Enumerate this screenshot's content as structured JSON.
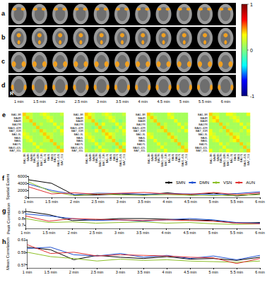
{
  "brain_maps": {
    "rows": [
      "a",
      "b",
      "c",
      "d"
    ],
    "times": [
      "1 min",
      "1.5 min",
      "2 min",
      "2.5 min",
      "3 min",
      "3.5 min",
      "4 min",
      "4.5 min",
      "5 min",
      "5.5 min",
      "6 min"
    ],
    "side_label": "R"
  },
  "colorbar": {
    "range": [
      -1,
      1
    ],
    "ticks": [
      1,
      0,
      -1
    ]
  },
  "chart_data": [
    {
      "type": "heatmap",
      "panel": "e",
      "categories": [
        "BA1-3R",
        "BA4R",
        "BA6R",
        "BA17R",
        "BA41-42R",
        "BA7_31R",
        "BA1-3L",
        "BA4L",
        "BA6L",
        "BA17L",
        "BA41-42L",
        "BA7_31L"
      ],
      "cells": [
        [
          0.4,
          0.2,
          0.2,
          0.1,
          0.1,
          0.2,
          0.3,
          0.2,
          0.1,
          0.1,
          0.1,
          0.2
        ],
        [
          0.2,
          0.4,
          0.2,
          0.1,
          0.1,
          0.1,
          0.2,
          0.3,
          0.2,
          0.1,
          0.1,
          0.1
        ],
        [
          0.2,
          0.2,
          0.4,
          0.1,
          0.1,
          0.1,
          0.1,
          0.2,
          0.3,
          0.1,
          0.1,
          0.1
        ],
        [
          0.1,
          0.1,
          0.1,
          0.4,
          0.1,
          0.2,
          0.1,
          0.1,
          0.1,
          0.3,
          0.1,
          0.2
        ],
        [
          0.1,
          0.1,
          0.1,
          0.1,
          0.4,
          0.1,
          0.1,
          0.1,
          0.1,
          0.1,
          0.3,
          0.1
        ],
        [
          0.2,
          0.1,
          0.1,
          0.2,
          0.1,
          0.4,
          0.2,
          0.1,
          0.1,
          0.2,
          0.1,
          0.3
        ],
        [
          0.3,
          0.2,
          0.1,
          0.1,
          0.1,
          0.2,
          0.4,
          0.2,
          0.2,
          0.1,
          0.1,
          0.2
        ],
        [
          0.2,
          0.3,
          0.2,
          0.1,
          0.1,
          0.1,
          0.2,
          0.4,
          0.2,
          0.1,
          0.1,
          0.1
        ],
        [
          0.1,
          0.2,
          0.3,
          0.1,
          0.1,
          0.1,
          0.2,
          0.2,
          0.4,
          0.1,
          0.1,
          0.1
        ],
        [
          0.1,
          0.1,
          0.1,
          0.3,
          0.1,
          0.2,
          0.1,
          0.1,
          0.1,
          0.4,
          0.1,
          0.2
        ],
        [
          0.1,
          0.1,
          0.1,
          0.1,
          0.3,
          0.1,
          0.1,
          0.1,
          0.1,
          0.1,
          0.4,
          0.1
        ],
        [
          0.2,
          0.1,
          0.1,
          0.2,
          0.1,
          0.3,
          0.2,
          0.1,
          0.1,
          0.2,
          0.1,
          0.4
        ]
      ]
    },
    {
      "type": "heatmap",
      "categories": [
        "BA1-3R",
        "BA4R",
        "BA6R",
        "BA17R",
        "BA41-42R",
        "BA7_31R",
        "BA1-3L",
        "BA4L",
        "BA6L",
        "BA17L",
        "BA41-42L",
        "BA7_31L"
      ],
      "cells": [
        [
          0.4,
          0.3,
          0.2,
          0.1,
          0.1,
          0.2,
          0.3,
          0.2,
          0.1,
          0.1,
          0.1,
          0.2
        ],
        [
          0.3,
          0.4,
          0.2,
          0.1,
          0.1,
          0.1,
          0.2,
          0.3,
          0.2,
          0.1,
          0.1,
          0.1
        ],
        [
          0.2,
          0.2,
          0.4,
          0.1,
          0.0,
          0.1,
          0.1,
          0.2,
          0.3,
          0.1,
          0.0,
          0.1
        ],
        [
          0.1,
          0.1,
          0.1,
          0.4,
          0.1,
          0.3,
          0.1,
          0.1,
          0.1,
          0.3,
          0.1,
          0.2
        ],
        [
          0.1,
          0.1,
          0.0,
          0.1,
          0.4,
          0.1,
          0.1,
          0.1,
          0.0,
          0.1,
          0.3,
          0.1
        ],
        [
          0.2,
          0.1,
          0.1,
          0.3,
          0.1,
          0.4,
          0.2,
          0.1,
          0.1,
          0.2,
          0.1,
          0.3
        ],
        [
          0.3,
          0.2,
          0.1,
          0.1,
          0.1,
          0.2,
          0.4,
          0.3,
          0.2,
          0.1,
          0.1,
          0.2
        ],
        [
          0.2,
          0.3,
          0.2,
          0.1,
          0.1,
          0.1,
          0.3,
          0.4,
          0.2,
          0.1,
          0.1,
          0.1
        ],
        [
          0.1,
          0.2,
          0.3,
          0.1,
          0.0,
          0.1,
          0.2,
          0.2,
          0.4,
          0.1,
          0.0,
          0.1
        ],
        [
          0.1,
          0.1,
          0.1,
          0.3,
          0.1,
          0.2,
          0.1,
          0.1,
          0.1,
          0.4,
          0.1,
          0.3
        ],
        [
          0.1,
          0.1,
          0.0,
          0.1,
          0.3,
          0.1,
          0.1,
          0.1,
          0.0,
          0.1,
          0.4,
          0.1
        ],
        [
          0.2,
          0.1,
          0.1,
          0.2,
          0.1,
          0.3,
          0.2,
          0.1,
          0.1,
          0.3,
          0.1,
          0.4
        ]
      ]
    },
    {
      "type": "heatmap",
      "categories": [
        "BA1-3R",
        "BA4R",
        "BA6R",
        "BA17R",
        "BA41-42R",
        "BA7_31R",
        "BA1-3L",
        "BA4L",
        "BA6L",
        "BA17L",
        "BA41-42L",
        "BA7_31L"
      ],
      "cells": [
        [
          0.4,
          0.2,
          0.1,
          0.1,
          0.1,
          0.1,
          0.3,
          0.2,
          0.1,
          0.1,
          0.1,
          0.1
        ],
        [
          0.2,
          0.4,
          0.2,
          0.1,
          0.1,
          0.1,
          0.2,
          0.3,
          0.1,
          0.1,
          0.1,
          0.1
        ],
        [
          0.1,
          0.2,
          0.4,
          0.1,
          0.1,
          0.1,
          0.1,
          0.1,
          0.3,
          0.1,
          0.1,
          0.1
        ],
        [
          0.1,
          0.1,
          0.1,
          0.4,
          0.1,
          0.2,
          0.1,
          0.1,
          0.1,
          0.3,
          0.1,
          0.2
        ],
        [
          0.1,
          0.1,
          0.1,
          0.1,
          0.4,
          0.2,
          0.1,
          0.1,
          0.1,
          0.1,
          0.3,
          0.1
        ],
        [
          0.1,
          0.1,
          0.1,
          0.2,
          0.2,
          0.4,
          0.1,
          0.1,
          0.1,
          0.2,
          0.1,
          0.3
        ],
        [
          0.3,
          0.2,
          0.1,
          0.1,
          0.1,
          0.1,
          0.4,
          0.2,
          0.1,
          0.1,
          0.1,
          0.1
        ],
        [
          0.2,
          0.3,
          0.1,
          0.1,
          0.1,
          0.1,
          0.2,
          0.4,
          0.2,
          0.1,
          0.1,
          0.1
        ],
        [
          0.1,
          0.1,
          0.3,
          0.1,
          0.1,
          0.1,
          0.1,
          0.2,
          0.4,
          0.1,
          0.1,
          0.1
        ],
        [
          0.1,
          0.1,
          0.1,
          0.3,
          0.1,
          0.2,
          0.1,
          0.1,
          0.1,
          0.4,
          0.1,
          0.2
        ],
        [
          0.1,
          0.1,
          0.1,
          0.1,
          0.3,
          0.1,
          0.1,
          0.1,
          0.1,
          0.1,
          0.4,
          0.2
        ],
        [
          0.1,
          0.1,
          0.1,
          0.2,
          0.1,
          0.3,
          0.1,
          0.1,
          0.1,
          0.2,
          0.2,
          0.4
        ]
      ]
    },
    {
      "type": "heatmap",
      "categories": [
        "BA1-3R",
        "BA4R",
        "BA6R",
        "BA17R",
        "BA41-42R",
        "BA7_31R",
        "BA1-3L",
        "BA4L",
        "BA6L",
        "BA17L",
        "BA41-42L",
        "BA7_31L"
      ],
      "cells": [
        [
          0.4,
          0.2,
          0.2,
          0.1,
          0.1,
          0.3,
          0.3,
          0.2,
          0.1,
          0.1,
          0.1,
          0.3
        ],
        [
          0.2,
          0.4,
          0.3,
          0.1,
          0.1,
          0.1,
          0.2,
          0.3,
          0.2,
          0.1,
          0.1,
          0.1
        ],
        [
          0.2,
          0.3,
          0.4,
          0.1,
          0.1,
          0.1,
          0.1,
          0.2,
          0.3,
          0.1,
          0.1,
          0.1
        ],
        [
          0.1,
          0.1,
          0.1,
          0.4,
          0.1,
          0.2,
          0.1,
          0.1,
          0.1,
          0.3,
          0.1,
          0.2
        ],
        [
          0.1,
          0.1,
          0.1,
          0.1,
          0.4,
          0.1,
          0.1,
          0.1,
          0.1,
          0.1,
          0.3,
          0.1
        ],
        [
          0.3,
          0.1,
          0.1,
          0.2,
          0.1,
          0.4,
          0.2,
          0.1,
          0.1,
          0.2,
          0.1,
          0.3
        ],
        [
          0.3,
          0.2,
          0.1,
          0.1,
          0.1,
          0.2,
          0.4,
          0.2,
          0.2,
          0.1,
          0.1,
          0.2
        ],
        [
          0.2,
          0.3,
          0.2,
          0.1,
          0.1,
          0.1,
          0.2,
          0.4,
          0.3,
          0.1,
          0.1,
          0.1
        ],
        [
          0.1,
          0.2,
          0.3,
          0.1,
          0.1,
          0.1,
          0.2,
          0.3,
          0.4,
          0.1,
          0.1,
          0.1
        ],
        [
          0.1,
          0.1,
          0.1,
          0.3,
          0.1,
          0.2,
          0.1,
          0.1,
          0.1,
          0.4,
          0.1,
          0.2
        ],
        [
          0.1,
          0.1,
          0.1,
          0.1,
          0.3,
          0.1,
          0.1,
          0.1,
          0.1,
          0.1,
          0.4,
          0.1
        ],
        [
          0.3,
          0.1,
          0.1,
          0.2,
          0.1,
          0.3,
          0.2,
          0.1,
          0.1,
          0.2,
          0.1,
          0.4
        ]
      ]
    },
    {
      "type": "line",
      "panel": "f",
      "ylabel": "Spatial Extent",
      "categories": [
        "1 min",
        "1.5 min",
        "2 min",
        "2.5 min",
        "3 min",
        "3.5 min",
        "4 min",
        "4.5 min",
        "5 min",
        "5.5 min",
        "6 min"
      ],
      "ylim": [
        0,
        6000
      ],
      "yticks": [
        0,
        2000,
        4000,
        6000
      ],
      "grid": false,
      "legend": "upper right",
      "series": [
        {
          "name": "SMN",
          "color": "#000000",
          "line_style": "solid",
          "marker": "none",
          "values": [
            5000,
            4000,
            600,
            700,
            1000,
            700,
            1300,
            700,
            1200,
            400,
            1000
          ]
        },
        {
          "name": "DMN",
          "color": "#1f4fd0",
          "line_style": "solid",
          "marker": "none",
          "values": [
            3800,
            2000,
            800,
            1200,
            1100,
            900,
            1000,
            1000,
            800,
            1100,
            1600
          ]
        },
        {
          "name": "VSN",
          "color": "#8cbf26",
          "line_style": "solid",
          "marker": "none",
          "values": [
            4400,
            1600,
            500,
            1000,
            700,
            600,
            800,
            600,
            500,
            600,
            800
          ]
        },
        {
          "name": "AUN",
          "color": "#e03030",
          "line_style": "solid",
          "marker": "none",
          "values": [
            3000,
            1000,
            1300,
            900,
            1200,
            1400,
            1000,
            900,
            1400,
            800,
            1300
          ]
        }
      ]
    },
    {
      "type": "line",
      "panel": "g",
      "ylabel": "Peak Correlation",
      "categories": [
        "1 min",
        "1.5 min",
        "2 min",
        "2.5 min",
        "3 min",
        "3.5 min",
        "4 min",
        "4.5 min",
        "5 min",
        "5.5 min",
        "6 min"
      ],
      "ylim": [
        0.65,
        0.95
      ],
      "yticks": [
        0.7,
        0.8,
        0.9
      ],
      "grid": false,
      "series": [
        {
          "name": "SMN",
          "color": "#000000",
          "line_style": "solid",
          "marker": "none",
          "values": [
            0.91,
            0.86,
            0.77,
            0.78,
            0.8,
            0.8,
            0.79,
            0.78,
            0.77,
            0.73,
            0.74
          ]
        },
        {
          "name": "DMN",
          "color": "#1f4fd0",
          "line_style": "solid",
          "marker": "none",
          "values": [
            0.87,
            0.84,
            0.8,
            0.77,
            0.78,
            0.76,
            0.78,
            0.8,
            0.78,
            0.74,
            0.73
          ]
        },
        {
          "name": "VSN",
          "color": "#8cbf26",
          "line_style": "solid",
          "marker": "none",
          "values": [
            0.8,
            0.74,
            0.75,
            0.73,
            0.74,
            0.75,
            0.73,
            0.74,
            0.72,
            0.71,
            0.72
          ]
        },
        {
          "name": "AUN",
          "color": "#e03030",
          "line_style": "solid",
          "marker": "none",
          "values": [
            0.84,
            0.76,
            0.8,
            0.79,
            0.78,
            0.77,
            0.78,
            0.77,
            0.76,
            0.73,
            0.72
          ]
        }
      ]
    },
    {
      "type": "line",
      "panel": "h",
      "ylabel": "Mean Correlation",
      "categories": [
        "1 min",
        "1.5 min",
        "2 min",
        "2.5 min",
        "3 min",
        "3.5 min",
        "4 min",
        "4.5 min",
        "5 min",
        "5.5 min",
        "6 min"
      ],
      "ylim": [
        0.565,
        0.61
      ],
      "yticks": [
        0.57,
        0.59,
        0.61
      ],
      "grid": false,
      "series": [
        {
          "name": "SMN",
          "color": "#000000",
          "line_style": "solid",
          "marker": "none",
          "values": [
            0.598,
            0.594,
            0.578,
            0.585,
            0.582,
            0.58,
            0.583,
            0.579,
            0.58,
            0.577,
            0.582
          ]
        },
        {
          "name": "DMN",
          "color": "#1f4fd0",
          "line_style": "solid",
          "marker": "none",
          "values": [
            0.596,
            0.598,
            0.586,
            0.584,
            0.588,
            0.582,
            0.585,
            0.58,
            0.584,
            0.578,
            0.585
          ]
        },
        {
          "name": "VSN",
          "color": "#8cbf26",
          "line_style": "solid",
          "marker": "none",
          "values": [
            0.59,
            0.583,
            0.58,
            0.576,
            0.579,
            0.577,
            0.578,
            0.576,
            0.575,
            0.574,
            0.576
          ]
        },
        {
          "name": "AUN",
          "color": "#e03030",
          "line_style": "solid",
          "marker": "none",
          "values": [
            0.602,
            0.588,
            0.59,
            0.584,
            0.586,
            0.585,
            0.584,
            0.582,
            0.581,
            0.572,
            0.58
          ]
        }
      ]
    }
  ]
}
